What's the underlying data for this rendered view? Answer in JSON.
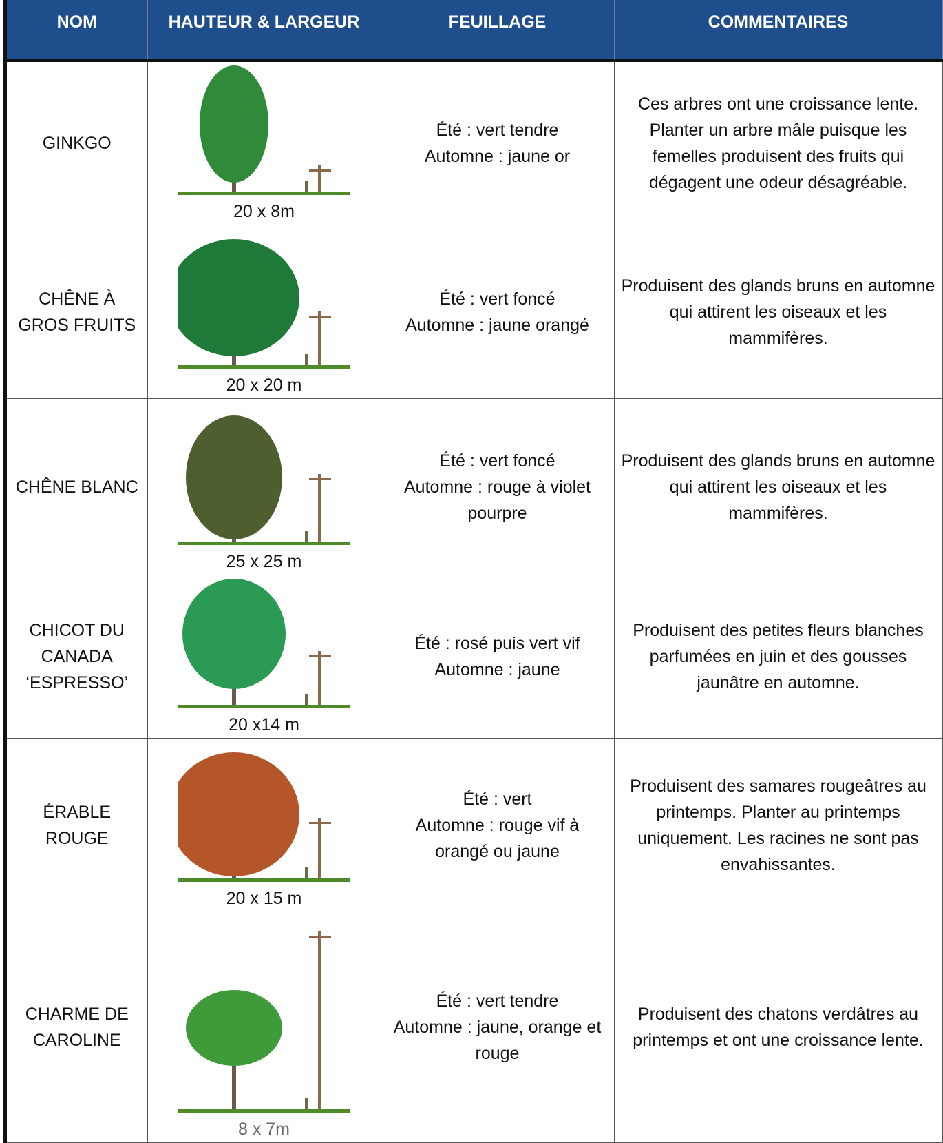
{
  "header": {
    "columns": [
      "NOM",
      "HAUTEUR & LARGEUR",
      "FEUILLAGE",
      "COMMENTAIRES"
    ]
  },
  "table": {
    "rows": [
      {
        "name": "GINKGO",
        "size": "20 x 8m",
        "foliage": [
          "Été : vert tendre",
          "Automne : jaune or"
        ],
        "comment": "Ces arbres ont une croissance lente. Planter un arbre mâle puisque les femelles produisent des fruits qui dégagent une odeur désagréable."
      },
      {
        "name": "CHÊNE À GROS FRUITS",
        "size": "20 x 20 m",
        "foliage": [
          "Été : vert foncé",
          "Automne : jaune orangé"
        ],
        "comment": "Produisent des glands bruns en automne qui attirent les oiseaux et les mammifères."
      },
      {
        "name": "CHÊNE BLANC",
        "size": "25 x 25 m",
        "foliage": [
          "Été : vert foncé",
          "Automne : rouge à violet pourpre"
        ],
        "comment": "Produisent des glands bruns en automne qui attirent les oiseaux et les mammifères."
      },
      {
        "name": "CHICOT DU CANADA ‘ESPRESSO’",
        "size": "20 x14 m",
        "foliage": [
          "Été : rosé puis vert vif",
          "Automne : jaune"
        ],
        "comment": "Produisent des petites fleurs blanches parfumées en juin et des gousses jaunâtre en automne."
      },
      {
        "name": "ÉRABLE ROUGE",
        "size": "20 x 15 m",
        "foliage": [
          "Été : vert",
          "Automne : rouge vif à orangé ou jaune"
        ],
        "comment": "Produisent des samares rougeâtres au printemps. Planter au printemps uniquement. Les racines ne sont pas envahissantes."
      },
      {
        "name": "CHARME DE CAROLINE",
        "size": "8 x 7m",
        "foliage": [
          "Été : vert tendre",
          "Automne : jaune, orange et rouge"
        ],
        "comment": "Produisent des chatons verdâtres au printemps et ont une croissance lente."
      }
    ]
  }
}
